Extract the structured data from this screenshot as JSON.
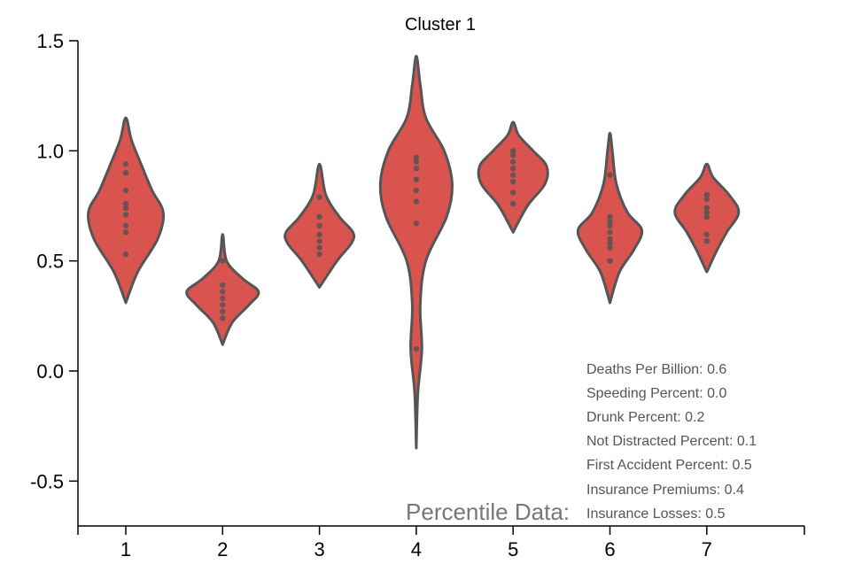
{
  "chart_data": {
    "type": "violin",
    "title": "Cluster 1",
    "xlabel": "",
    "ylabel": "",
    "categories": [
      "1",
      "2",
      "3",
      "4",
      "5",
      "6",
      "7"
    ],
    "ylim": [
      -0.7,
      1.5
    ],
    "yticks": [
      -0.5,
      0.0,
      0.5,
      1.0,
      1.5
    ],
    "ytick_labels": [
      "-0.5",
      "0.0",
      "0.5",
      "1.0",
      "1.5"
    ],
    "grid": false,
    "colors": {
      "fill": "#d9534f",
      "stroke": "#555555",
      "point": "#6b5252"
    },
    "violins": [
      {
        "category": "1",
        "min": 0.31,
        "max": 1.15,
        "points": [
          0.94,
          0.9,
          0.82,
          0.76,
          0.74,
          0.71,
          0.66,
          0.63,
          0.53
        ],
        "profile": [
          [
            0.31,
            0.0
          ],
          [
            0.45,
            0.15
          ],
          [
            0.6,
            0.4
          ],
          [
            0.72,
            0.47
          ],
          [
            0.82,
            0.33
          ],
          [
            0.95,
            0.18
          ],
          [
            1.05,
            0.07
          ],
          [
            1.15,
            0.0
          ]
        ]
      },
      {
        "category": "2",
        "min": 0.12,
        "max": 0.62,
        "points": [
          0.5,
          0.39,
          0.36,
          0.33,
          0.3,
          0.27,
          0.24
        ],
        "profile": [
          [
            0.12,
            0.0
          ],
          [
            0.22,
            0.12
          ],
          [
            0.3,
            0.33
          ],
          [
            0.36,
            0.45
          ],
          [
            0.42,
            0.25
          ],
          [
            0.5,
            0.05
          ],
          [
            0.62,
            0.0
          ]
        ]
      },
      {
        "category": "3",
        "min": 0.38,
        "max": 0.94,
        "points": [
          0.79,
          0.7,
          0.66,
          0.62,
          0.59,
          0.56,
          0.53
        ],
        "profile": [
          [
            0.38,
            0.0
          ],
          [
            0.5,
            0.22
          ],
          [
            0.58,
            0.4
          ],
          [
            0.63,
            0.42
          ],
          [
            0.7,
            0.25
          ],
          [
            0.8,
            0.08
          ],
          [
            0.94,
            0.0
          ]
        ]
      },
      {
        "category": "4",
        "min": -0.35,
        "max": 1.43,
        "points": [
          0.97,
          0.95,
          0.92,
          0.87,
          0.82,
          0.77,
          0.67,
          0.1
        ],
        "profile": [
          [
            -0.35,
            0.0
          ],
          [
            -0.1,
            0.02
          ],
          [
            0.1,
            0.07
          ],
          [
            0.3,
            0.05
          ],
          [
            0.5,
            0.12
          ],
          [
            0.7,
            0.38
          ],
          [
            0.85,
            0.45
          ],
          [
            1.0,
            0.35
          ],
          [
            1.15,
            0.12
          ],
          [
            1.3,
            0.05
          ],
          [
            1.43,
            0.0
          ]
        ]
      },
      {
        "category": "5",
        "min": 0.63,
        "max": 1.13,
        "points": [
          1.0,
          0.98,
          0.95,
          0.92,
          0.89,
          0.86,
          0.81,
          0.76
        ],
        "profile": [
          [
            0.63,
            0.0
          ],
          [
            0.75,
            0.18
          ],
          [
            0.85,
            0.4
          ],
          [
            0.93,
            0.42
          ],
          [
            1.0,
            0.25
          ],
          [
            1.07,
            0.07
          ],
          [
            1.13,
            0.0
          ]
        ]
      },
      {
        "category": "6",
        "min": 0.31,
        "max": 1.08,
        "points": [
          0.89,
          0.7,
          0.68,
          0.66,
          0.63,
          0.6,
          0.58,
          0.56,
          0.5
        ],
        "profile": [
          [
            0.31,
            0.0
          ],
          [
            0.45,
            0.12
          ],
          [
            0.55,
            0.3
          ],
          [
            0.64,
            0.4
          ],
          [
            0.72,
            0.22
          ],
          [
            0.85,
            0.08
          ],
          [
            1.0,
            0.03
          ],
          [
            1.08,
            0.0
          ]
        ]
      },
      {
        "category": "7",
        "min": 0.45,
        "max": 0.94,
        "points": [
          0.8,
          0.78,
          0.74,
          0.72,
          0.7,
          0.62,
          0.59
        ],
        "profile": [
          [
            0.45,
            0.0
          ],
          [
            0.55,
            0.13
          ],
          [
            0.63,
            0.25
          ],
          [
            0.72,
            0.4
          ],
          [
            0.8,
            0.28
          ],
          [
            0.88,
            0.08
          ],
          [
            0.94,
            0.0
          ]
        ]
      }
    ]
  },
  "info": {
    "heading": "Percentile Data:",
    "lines": [
      "Deaths Per Billion: 0.6",
      "Speeding Percent: 0.0",
      "Drunk Percent: 0.2",
      "Not Distracted Percent: 0.1",
      "First Accident Percent: 0.5",
      "Insurance Premiums: 0.4",
      "Insurance Losses: 0.5"
    ]
  }
}
